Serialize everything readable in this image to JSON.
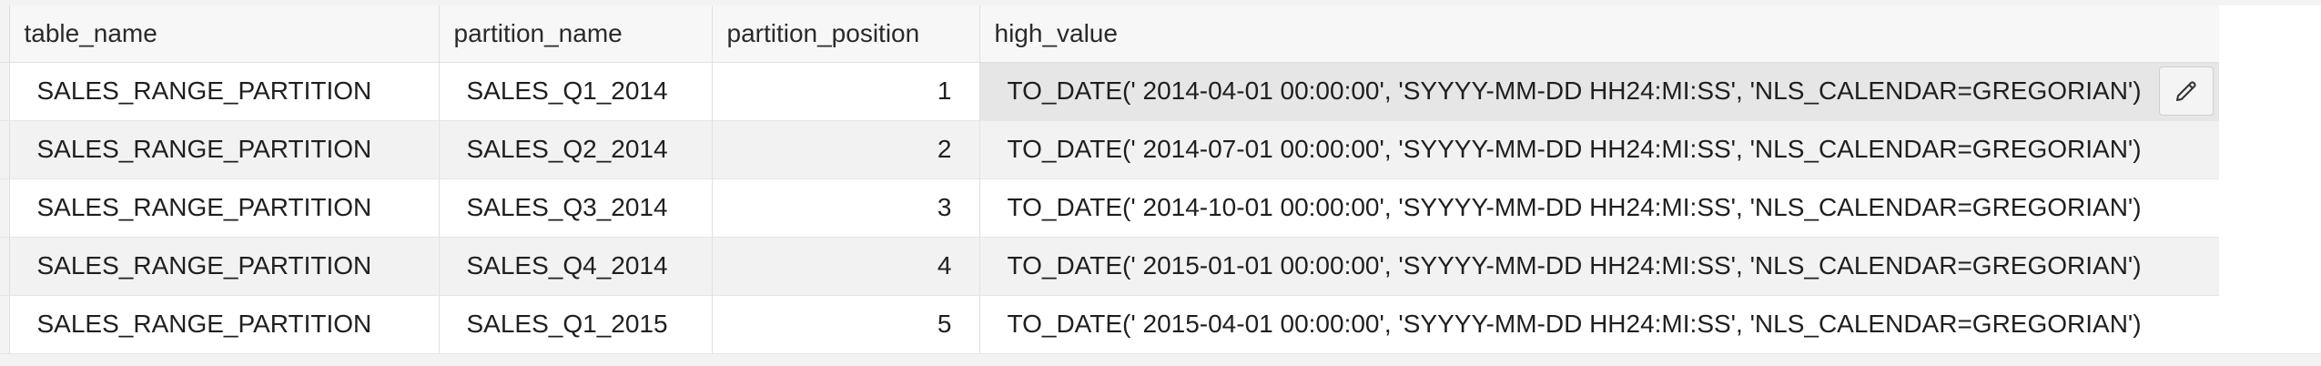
{
  "grid": {
    "columns": [
      "table_name",
      "partition_name",
      "partition_position",
      "high_value"
    ],
    "rows": [
      {
        "table_name": "SALES_RANGE_PARTITION",
        "partition_name": "SALES_Q1_2014",
        "partition_position": "1",
        "high_value": "TO_DATE(' 2014-04-01 00:00:00', 'SYYYY-MM-DD HH24:MI:SS', 'NLS_CALENDAR=GREGORIAN')"
      },
      {
        "table_name": "SALES_RANGE_PARTITION",
        "partition_name": "SALES_Q2_2014",
        "partition_position": "2",
        "high_value": "TO_DATE(' 2014-07-01 00:00:00', 'SYYYY-MM-DD HH24:MI:SS', 'NLS_CALENDAR=GREGORIAN')"
      },
      {
        "table_name": "SALES_RANGE_PARTITION",
        "partition_name": "SALES_Q3_2014",
        "partition_position": "3",
        "high_value": "TO_DATE(' 2014-10-01 00:00:00', 'SYYYY-MM-DD HH24:MI:SS', 'NLS_CALENDAR=GREGORIAN')"
      },
      {
        "table_name": "SALES_RANGE_PARTITION",
        "partition_name": "SALES_Q4_2014",
        "partition_position": "4",
        "high_value": "TO_DATE(' 2015-01-01 00:00:00', 'SYYYY-MM-DD HH24:MI:SS', 'NLS_CALENDAR=GREGORIAN')"
      },
      {
        "table_name": "SALES_RANGE_PARTITION",
        "partition_name": "SALES_Q1_2015",
        "partition_position": "5",
        "high_value": "TO_DATE(' 2015-04-01 00:00:00', 'SYYYY-MM-DD HH24:MI:SS', 'NLS_CALENDAR=GREGORIAN')"
      }
    ],
    "selected_row": 0,
    "edit_icon": "pencil-icon"
  }
}
